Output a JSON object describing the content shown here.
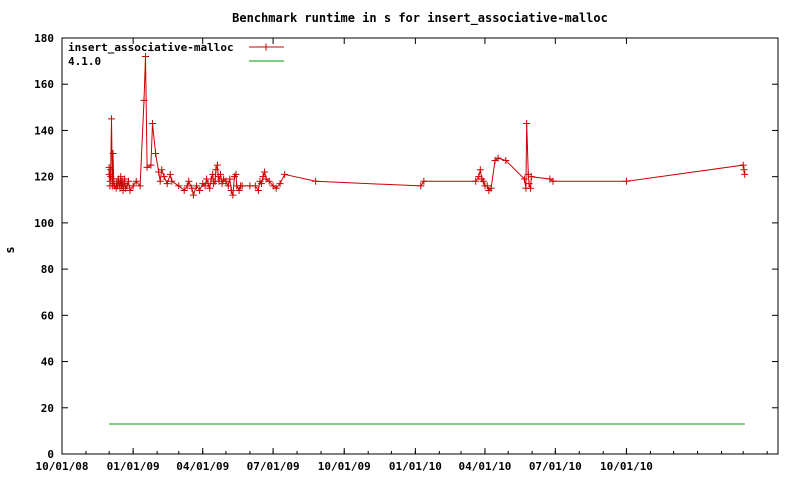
{
  "chart_data": {
    "type": "line",
    "title": "Benchmark runtime in s for insert_associative-malloc",
    "xlabel": "",
    "ylabel": "s",
    "ylim": [
      0,
      180
    ],
    "xlim": [
      "2008-10-01",
      "2011-04-15"
    ],
    "y_ticks": [
      0,
      20,
      40,
      60,
      80,
      100,
      120,
      140,
      160,
      180
    ],
    "x_ticks": [
      {
        "date": "2008-10-01",
        "label": "10/01/08"
      },
      {
        "date": "2009-01-01",
        "label": "01/01/09"
      },
      {
        "date": "2009-04-01",
        "label": "04/01/09"
      },
      {
        "date": "2009-07-01",
        "label": "07/01/09"
      },
      {
        "date": "2009-10-01",
        "label": "10/01/09"
      },
      {
        "date": "2010-01-01",
        "label": "01/01/10"
      },
      {
        "date": "2010-04-01",
        "label": "04/01/10"
      },
      {
        "date": "2010-07-01",
        "label": "07/01/10"
      },
      {
        "date": "2010-10-01",
        "label": "10/01/10"
      }
    ],
    "grid": false,
    "legend": "top-left",
    "series": [
      {
        "name": "insert_associative-malloc",
        "color": "#cc0000",
        "marker": "plus",
        "points": [
          [
            "2008-12-01",
            121
          ],
          [
            "2008-12-01",
            124
          ],
          [
            "2008-12-02",
            118
          ],
          [
            "2008-12-02",
            116
          ],
          [
            "2008-12-03",
            120
          ],
          [
            "2008-12-03",
            123
          ],
          [
            "2008-12-04",
            145
          ],
          [
            "2008-12-05",
            119
          ],
          [
            "2008-12-05",
            116
          ],
          [
            "2008-12-06",
            130
          ],
          [
            "2008-12-07",
            117
          ],
          [
            "2008-12-08",
            116
          ],
          [
            "2008-12-10",
            115
          ],
          [
            "2008-12-11",
            118
          ],
          [
            "2008-12-12",
            116
          ],
          [
            "2008-12-13",
            119
          ],
          [
            "2008-12-14",
            117
          ],
          [
            "2008-12-15",
            115
          ],
          [
            "2008-12-16",
            120
          ],
          [
            "2008-12-17",
            116
          ],
          [
            "2008-12-18",
            118
          ],
          [
            "2008-12-19",
            114
          ],
          [
            "2008-12-20",
            117
          ],
          [
            "2008-12-21",
            119
          ],
          [
            "2008-12-22",
            115
          ],
          [
            "2008-12-24",
            116
          ],
          [
            "2008-12-26",
            118
          ],
          [
            "2008-12-28",
            114
          ],
          [
            "2009-01-01",
            116
          ],
          [
            "2009-01-05",
            118
          ],
          [
            "2009-01-10",
            116
          ],
          [
            "2009-01-15",
            153
          ],
          [
            "2009-01-17",
            172
          ],
          [
            "2009-01-19",
            124
          ],
          [
            "2009-01-24",
            125
          ],
          [
            "2009-01-26",
            143
          ],
          [
            "2009-01-30",
            130
          ],
          [
            "2009-02-03",
            122
          ],
          [
            "2009-02-05",
            118
          ],
          [
            "2009-02-07",
            123
          ],
          [
            "2009-02-10",
            120
          ],
          [
            "2009-02-14",
            117
          ],
          [
            "2009-02-18",
            121
          ],
          [
            "2009-02-20",
            118
          ],
          [
            "2009-03-01",
            116
          ],
          [
            "2009-03-08",
            114
          ],
          [
            "2009-03-12",
            116
          ],
          [
            "2009-03-14",
            118
          ],
          [
            "2009-03-18",
            115
          ],
          [
            "2009-03-20",
            112
          ],
          [
            "2009-03-24",
            116
          ],
          [
            "2009-03-28",
            114
          ],
          [
            "2009-04-01",
            117
          ],
          [
            "2009-04-04",
            116
          ],
          [
            "2009-04-06",
            119
          ],
          [
            "2009-04-08",
            117
          ],
          [
            "2009-04-10",
            115
          ],
          [
            "2009-04-12",
            119
          ],
          [
            "2009-04-14",
            121
          ],
          [
            "2009-04-15",
            117
          ],
          [
            "2009-04-17",
            118
          ],
          [
            "2009-04-18",
            123
          ],
          [
            "2009-04-20",
            125
          ],
          [
            "2009-04-21",
            120
          ],
          [
            "2009-04-22",
            118
          ],
          [
            "2009-04-24",
            121
          ],
          [
            "2009-04-26",
            117
          ],
          [
            "2009-04-28",
            119
          ],
          [
            "2009-05-01",
            118
          ],
          [
            "2009-05-04",
            116
          ],
          [
            "2009-05-06",
            119
          ],
          [
            "2009-05-08",
            114
          ],
          [
            "2009-05-10",
            112
          ],
          [
            "2009-05-12",
            120
          ],
          [
            "2009-05-14",
            121
          ],
          [
            "2009-05-15",
            116
          ],
          [
            "2009-05-18",
            114
          ],
          [
            "2009-05-20",
            116
          ],
          [
            "2009-05-22",
            116
          ],
          [
            "2009-06-01",
            116
          ],
          [
            "2009-06-08",
            116
          ],
          [
            "2009-06-12",
            114
          ],
          [
            "2009-06-14",
            118
          ],
          [
            "2009-06-16",
            117
          ],
          [
            "2009-06-18",
            120
          ],
          [
            "2009-06-20",
            122
          ],
          [
            "2009-06-22",
            119
          ],
          [
            "2009-06-26",
            118
          ],
          [
            "2009-07-01",
            116
          ],
          [
            "2009-07-05",
            115
          ],
          [
            "2009-07-10",
            117
          ],
          [
            "2009-07-16",
            121
          ],
          [
            "2009-08-25",
            118
          ],
          [
            "2010-01-08",
            116
          ],
          [
            "2010-01-12",
            118
          ],
          [
            "2010-03-20",
            118
          ],
          [
            "2010-03-24",
            120
          ],
          [
            "2010-03-26",
            123
          ],
          [
            "2010-03-28",
            119
          ],
          [
            "2010-03-30",
            118
          ],
          [
            "2010-04-01",
            116
          ],
          [
            "2010-04-04",
            116
          ],
          [
            "2010-04-06",
            114
          ],
          [
            "2010-04-09",
            115
          ],
          [
            "2010-04-14",
            127
          ],
          [
            "2010-04-18",
            128
          ],
          [
            "2010-04-28",
            127
          ],
          [
            "2010-05-22",
            119
          ],
          [
            "2010-05-24",
            115
          ],
          [
            "2010-05-25",
            143
          ],
          [
            "2010-05-27",
            121
          ],
          [
            "2010-05-28",
            117
          ],
          [
            "2010-05-30",
            115
          ],
          [
            "2010-05-31",
            120
          ],
          [
            "2010-06-24",
            119
          ],
          [
            "2010-06-28",
            118
          ],
          [
            "2010-10-01",
            118
          ],
          [
            "2011-03-01",
            125
          ],
          [
            "2011-03-02",
            123
          ],
          [
            "2011-03-03",
            121
          ]
        ]
      },
      {
        "name": "4.1.0",
        "color": "#009900",
        "marker": "none",
        "points": [
          [
            "2008-12-01",
            13
          ],
          [
            "2011-03-03",
            13
          ]
        ]
      }
    ]
  }
}
